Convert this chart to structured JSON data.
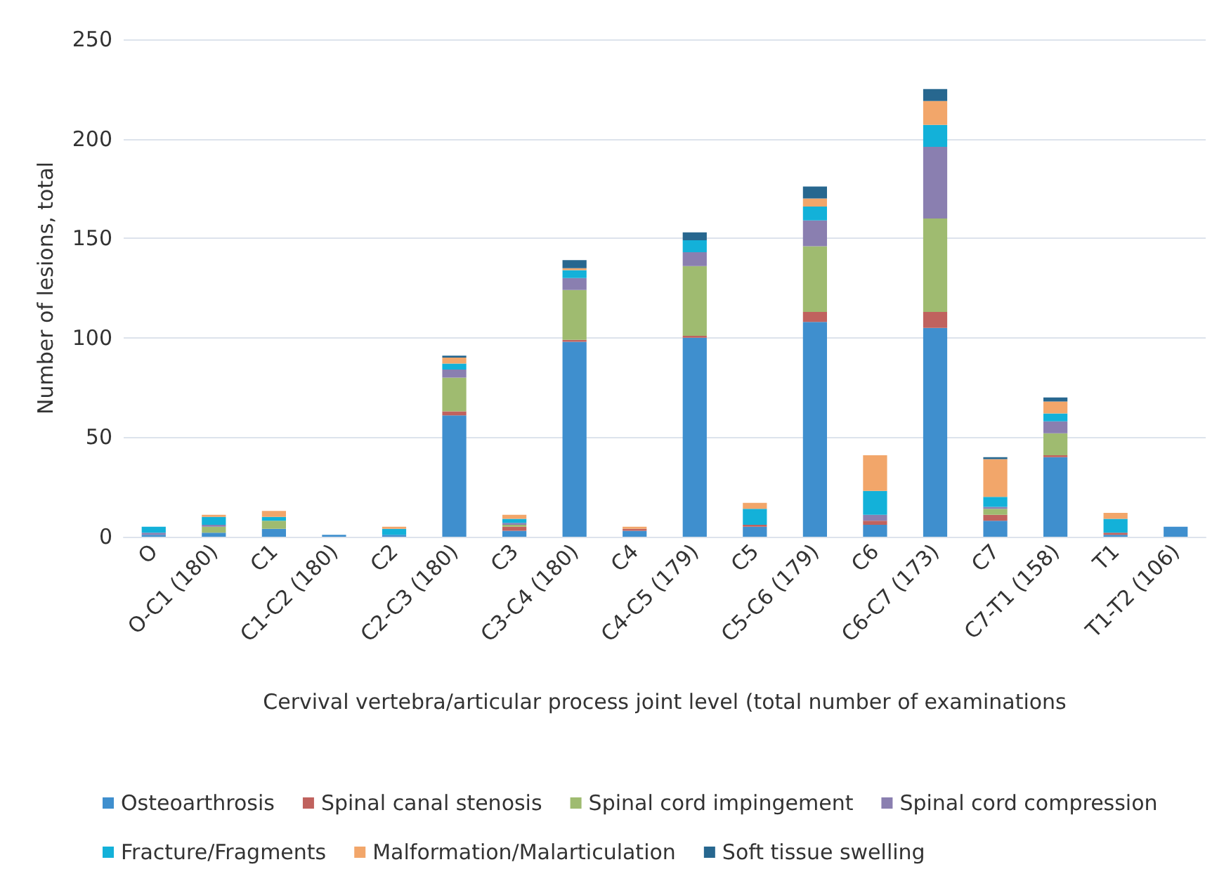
{
  "chart_data": {
    "type": "bar",
    "stacked": true,
    "xlabel": "Cervival vertebra/articular process joint level (total number of examinations",
    "ylabel": "Number of lesions, total",
    "categories": [
      "O",
      "O-C1 (180)",
      "C1",
      "C1-C2 (180)",
      "C2",
      "C2-C3 (180)",
      "C3",
      "C3-C4 (180)",
      "C4",
      "C4-C5 (179)",
      "C5",
      "C5-C6 (179)",
      "C6",
      "C6-C7 (173)",
      "C7",
      "C7-T1 (158)",
      "T1",
      "T1-T2 (106)"
    ],
    "series": [
      {
        "name": "Osteoarthrosis",
        "color": "#3f8fce",
        "values": [
          1,
          2,
          4,
          1,
          1,
          61,
          3,
          98,
          3,
          100,
          5,
          108,
          6,
          105,
          8,
          40,
          1,
          5
        ]
      },
      {
        "name": "Spinal canal stenosis",
        "color": "#c0625e",
        "values": [
          0,
          0,
          0,
          0,
          0,
          2,
          2,
          1,
          1,
          1,
          1,
          5,
          2,
          8,
          3,
          1,
          1,
          0
        ]
      },
      {
        "name": "Spinal cord impingement",
        "color": "#9fbb70",
        "values": [
          0,
          3,
          4,
          0,
          0,
          17,
          1,
          25,
          0,
          35,
          0,
          33,
          0,
          47,
          3,
          11,
          0,
          0
        ]
      },
      {
        "name": "Spinal cord compression",
        "color": "#8a7fb0",
        "values": [
          1,
          1,
          0,
          0,
          0,
          4,
          1,
          6,
          0,
          7,
          0,
          13,
          3,
          36,
          1,
          6,
          0,
          0
        ]
      },
      {
        "name": "Fracture/Fragments",
        "color": "#13b1d9",
        "values": [
          3,
          4,
          2,
          0,
          3,
          3,
          2,
          4,
          0,
          6,
          8,
          7,
          12,
          11,
          5,
          4,
          7,
          0
        ]
      },
      {
        "name": "Malformation/Malarticulation",
        "color": "#f2a66a",
        "values": [
          0,
          1,
          3,
          0,
          1,
          3,
          2,
          1,
          1,
          0,
          3,
          4,
          18,
          12,
          19,
          6,
          3,
          0
        ]
      },
      {
        "name": "Soft tissue swelling",
        "color": "#27678f",
        "values": [
          0,
          0,
          0,
          0,
          0,
          1,
          0,
          4,
          0,
          4,
          0,
          6,
          0,
          6,
          1,
          2,
          0,
          0
        ]
      }
    ],
    "ylim": [
      0,
      250
    ],
    "yticks": [
      0,
      50,
      100,
      150,
      200,
      250
    ],
    "grid": "y",
    "legend": "bottom"
  }
}
